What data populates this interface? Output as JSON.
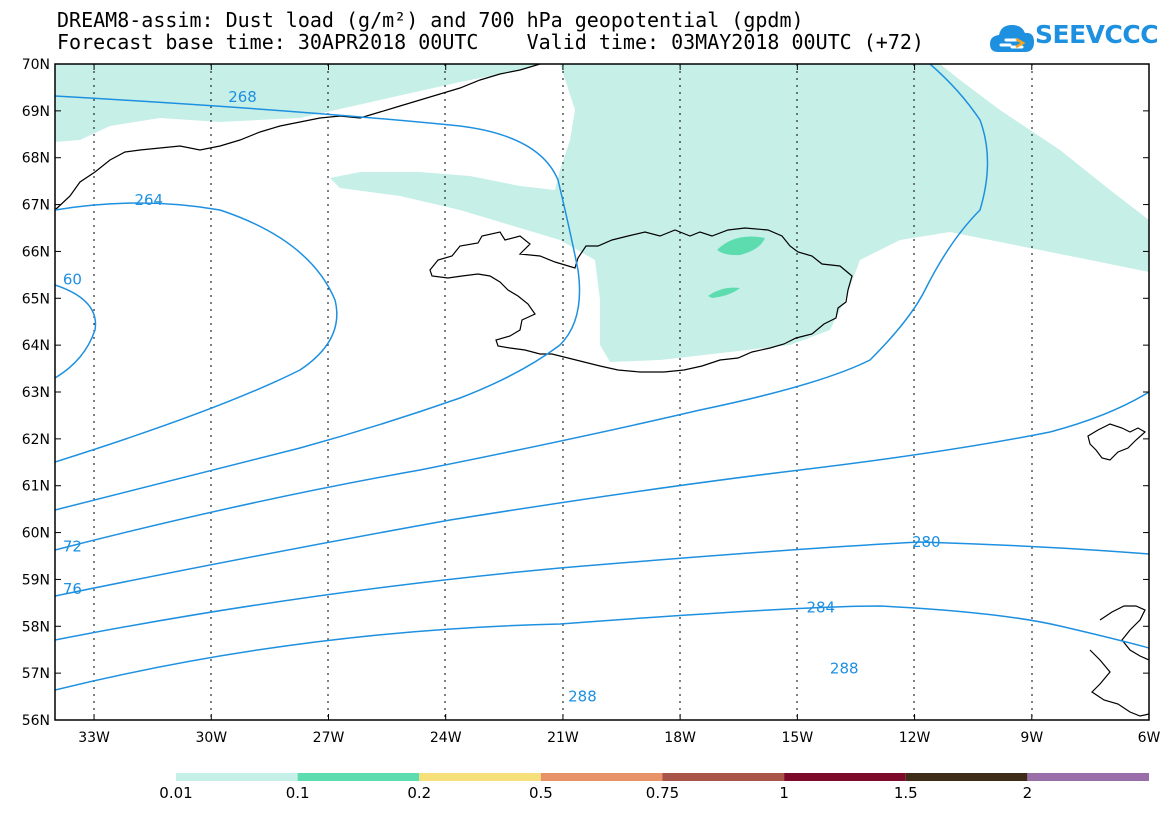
{
  "header": {
    "title_line1": "DREAM8-assim: Dust load (g/m²) and 700 hPa geopotential (gpdm)",
    "title_line2": "Forecast base time: 30APR2018 00UTC    Valid time: 03MAY2018 00UTC (+72)"
  },
  "logo": {
    "text": "SEEVCCC",
    "color": "#1e90e0",
    "icon": "cloud-logo-icon"
  },
  "map": {
    "lon_range": [
      -34,
      -6
    ],
    "lat_range": [
      56,
      70
    ],
    "lat_labels": [
      "70N",
      "69N",
      "68N",
      "67N",
      "66N",
      "65N",
      "64N",
      "63N",
      "62N",
      "61N",
      "60N",
      "59N",
      "58N",
      "57N",
      "56N"
    ],
    "lon_labels": [
      "33W",
      "30W",
      "27W",
      "24W",
      "21W",
      "18W",
      "15W",
      "12W",
      "9W",
      "6W"
    ],
    "isoline_color": "#1e90e0",
    "isoline_labels": [
      {
        "text": "268",
        "lon": -29.2,
        "lat": 69.3
      },
      {
        "text": "264",
        "lon": -31.6,
        "lat": 67.1
      },
      {
        "text": "60",
        "lon": -33.8,
        "lat": 65.4
      },
      {
        "text": "72",
        "lon": -33.8,
        "lat": 59.7
      },
      {
        "text": "76",
        "lon": -33.8,
        "lat": 58.8
      },
      {
        "text": "280",
        "lon": -11.7,
        "lat": 59.8
      },
      {
        "text": "284",
        "lon": -14.4,
        "lat": 58.4
      },
      {
        "text": "288",
        "lon": -13.8,
        "lat": 57.1
      },
      {
        "text": "288",
        "lon": -20.5,
        "lat": 56.5
      }
    ]
  },
  "legend": {
    "colors": [
      "#c6efe8",
      "#5ddcb0",
      "#f5e07a",
      "#e8926a",
      "#a85448",
      "#7e0a2a",
      "#3e2b18",
      "#9a6ea8"
    ],
    "labels": [
      "0.01",
      "0.1",
      "0.2",
      "0.5",
      "0.75",
      "1",
      "1.5",
      "2"
    ]
  }
}
